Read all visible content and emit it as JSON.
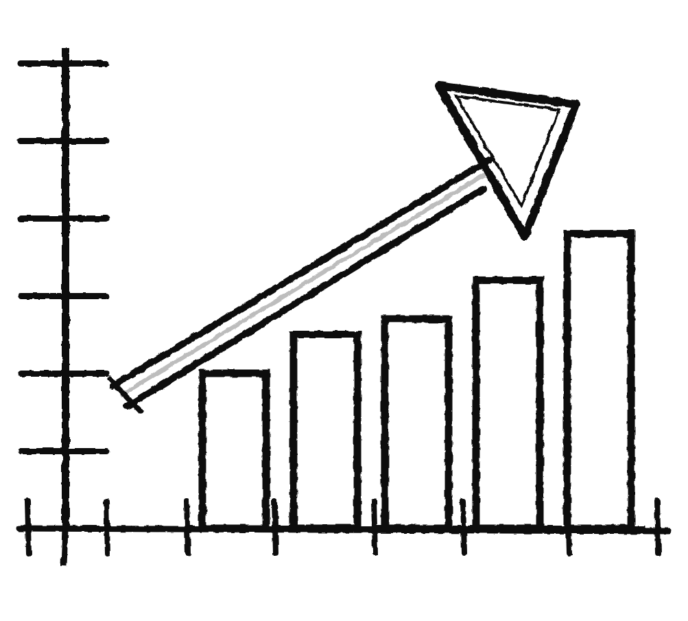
{
  "chart_data": {
    "type": "bar",
    "categories": [
      null,
      null,
      null,
      null,
      null
    ],
    "values": [
      2.0,
      2.5,
      2.7,
      3.2,
      3.8
    ],
    "color": "#111111",
    "ylim": [
      0,
      6.2
    ],
    "yticks": [
      1,
      2,
      3,
      4,
      5,
      6
    ],
    "tick_labels": false
  }
}
